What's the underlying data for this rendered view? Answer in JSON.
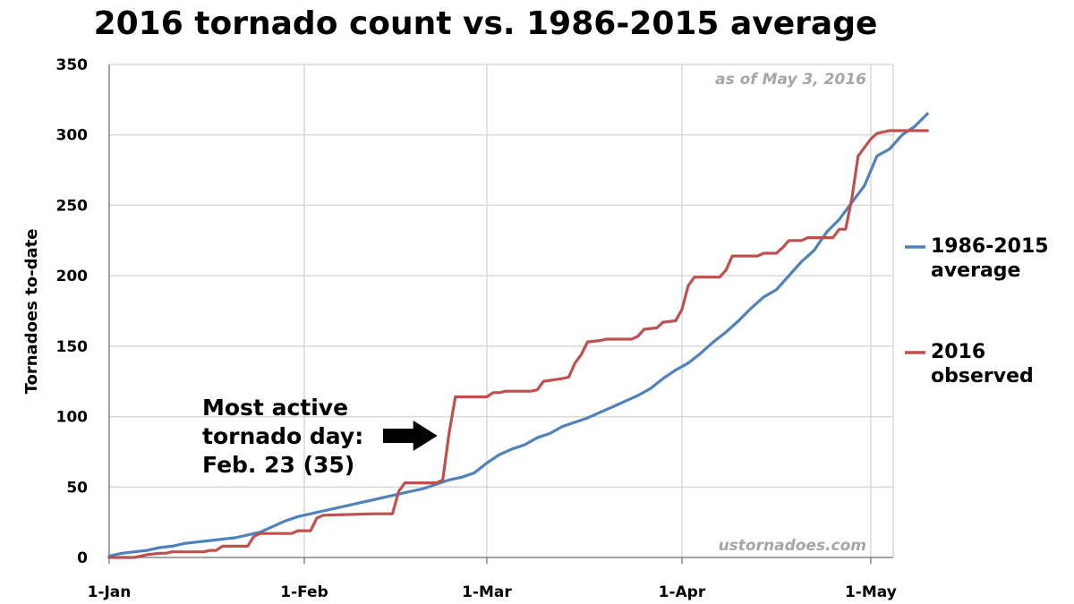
{
  "title": "2016 tornado count vs. 1986-2015 average",
  "colors": {
    "average": "#4f81bd",
    "observed": "#c0504d",
    "grid": "#d9d9d9",
    "axis": "#868686",
    "note": "#a6a6a6"
  },
  "chart_data": {
    "type": "line",
    "title": "2016 tornado count vs. 1986-2015 average",
    "ylabel": "Tornadoes to-date",
    "xlabel": "",
    "ylim": [
      0,
      350
    ],
    "yticks": [
      0,
      50,
      100,
      150,
      200,
      250,
      300,
      350
    ],
    "xticks": [
      {
        "label": "1-Jan",
        "day": 1
      },
      {
        "label": "1-Feb",
        "day": 32
      },
      {
        "label": "1-Mar",
        "day": 61
      },
      {
        "label": "1-Apr",
        "day": 92
      },
      {
        "label": "1-May",
        "day": 122
      }
    ],
    "xlim_day": [
      1,
      125
    ],
    "grid": true,
    "legend_position": "right",
    "annotation_date": "as of May 3, 2016",
    "watermark": "ustornadoes.com",
    "callout": {
      "lines": [
        "Most active",
        "tornado day:",
        "Feb. 23 (35)"
      ],
      "day": 54
    },
    "x_unit": "day of year",
    "series": [
      {
        "name": "1986-2015 average",
        "legend_lines": [
          "1986-2015",
          "average"
        ],
        "color": "#4f81bd",
        "points": [
          [
            1,
            1
          ],
          [
            3,
            3
          ],
          [
            5,
            4
          ],
          [
            7,
            5
          ],
          [
            9,
            7
          ],
          [
            11,
            8
          ],
          [
            13,
            10
          ],
          [
            15,
            11
          ],
          [
            17,
            12
          ],
          [
            19,
            13
          ],
          [
            21,
            14
          ],
          [
            23,
            16
          ],
          [
            25,
            18
          ],
          [
            27,
            22
          ],
          [
            29,
            26
          ],
          [
            31,
            29
          ],
          [
            33,
            31
          ],
          [
            35,
            33
          ],
          [
            37,
            35
          ],
          [
            39,
            37
          ],
          [
            41,
            39
          ],
          [
            43,
            41
          ],
          [
            45,
            43
          ],
          [
            47,
            45
          ],
          [
            49,
            47
          ],
          [
            51,
            49
          ],
          [
            53,
            52
          ],
          [
            55,
            55
          ],
          [
            57,
            57
          ],
          [
            59,
            60
          ],
          [
            61,
            67
          ],
          [
            63,
            73
          ],
          [
            65,
            77
          ],
          [
            67,
            80
          ],
          [
            69,
            85
          ],
          [
            71,
            88
          ],
          [
            73,
            93
          ],
          [
            75,
            96
          ],
          [
            77,
            99
          ],
          [
            79,
            103
          ],
          [
            81,
            107
          ],
          [
            83,
            111
          ],
          [
            85,
            115
          ],
          [
            87,
            120
          ],
          [
            89,
            127
          ],
          [
            91,
            133
          ],
          [
            93,
            138
          ],
          [
            95,
            145
          ],
          [
            97,
            153
          ],
          [
            99,
            160
          ],
          [
            101,
            168
          ],
          [
            103,
            177
          ],
          [
            105,
            185
          ],
          [
            107,
            190
          ],
          [
            109,
            200
          ],
          [
            111,
            210
          ],
          [
            113,
            218
          ],
          [
            115,
            231
          ],
          [
            117,
            240
          ],
          [
            119,
            252
          ],
          [
            121,
            264
          ],
          [
            123,
            285
          ],
          [
            125,
            290
          ],
          [
            127,
            300
          ],
          [
            129,
            306
          ],
          [
            131,
            315
          ]
        ]
      },
      {
        "name": "2016 observed",
        "legend_lines": [
          "2016",
          "observed"
        ],
        "color": "#c0504d",
        "points": [
          [
            1,
            0
          ],
          [
            5,
            0
          ],
          [
            7,
            2
          ],
          [
            9,
            3
          ],
          [
            10,
            3
          ],
          [
            11,
            4
          ],
          [
            16,
            4
          ],
          [
            17,
            5
          ],
          [
            18,
            5
          ],
          [
            19,
            8
          ],
          [
            23,
            8
          ],
          [
            24,
            15
          ],
          [
            25,
            17
          ],
          [
            30,
            17
          ],
          [
            31,
            19
          ],
          [
            32,
            19
          ],
          [
            33,
            19
          ],
          [
            34,
            28
          ],
          [
            35,
            30
          ],
          [
            43,
            31
          ],
          [
            46,
            31
          ],
          [
            47,
            47
          ],
          [
            48,
            53
          ],
          [
            53,
            53
          ],
          [
            54,
            55
          ],
          [
            55,
            88
          ],
          [
            56,
            114
          ],
          [
            61,
            114
          ],
          [
            62,
            117
          ],
          [
            63,
            117
          ],
          [
            64,
            118
          ],
          [
            68,
            118
          ],
          [
            69,
            119
          ],
          [
            70,
            125
          ],
          [
            73,
            127
          ],
          [
            74,
            128
          ],
          [
            75,
            138
          ],
          [
            76,
            144
          ],
          [
            77,
            153
          ],
          [
            79,
            154
          ],
          [
            80,
            155
          ],
          [
            84,
            155
          ],
          [
            85,
            157
          ],
          [
            86,
            162
          ],
          [
            88,
            163
          ],
          [
            89,
            167
          ],
          [
            91,
            168
          ],
          [
            92,
            176
          ],
          [
            93,
            193
          ],
          [
            94,
            199
          ],
          [
            98,
            199
          ],
          [
            99,
            204
          ],
          [
            100,
            214
          ],
          [
            104,
            214
          ],
          [
            105,
            216
          ],
          [
            107,
            216
          ],
          [
            108,
            220
          ],
          [
            109,
            225
          ],
          [
            111,
            225
          ],
          [
            112,
            227
          ],
          [
            116,
            227
          ],
          [
            117,
            233
          ],
          [
            118,
            233
          ],
          [
            119,
            255
          ],
          [
            120,
            285
          ],
          [
            122,
            297
          ],
          [
            123,
            301
          ],
          [
            125,
            303
          ],
          [
            131,
            303
          ]
        ]
      }
    ]
  }
}
